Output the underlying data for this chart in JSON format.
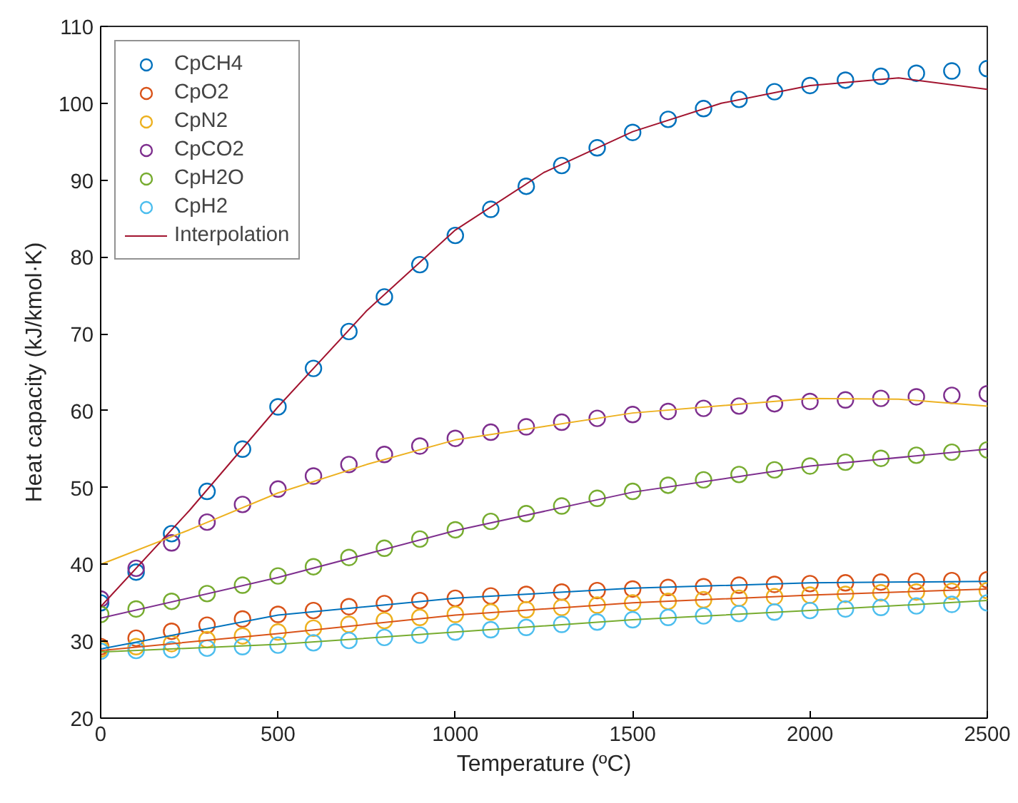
{
  "chart_data": {
    "type": "scatter",
    "xlabel": "Temperature (ºC)",
    "ylabel": "Heat capacity (kJ/kmol·K)",
    "xlim": [
      0,
      2500
    ],
    "ylim": [
      20,
      110
    ],
    "xticks": [
      0,
      500,
      1000,
      1500,
      2000,
      2500
    ],
    "yticks": [
      20,
      30,
      40,
      50,
      60,
      70,
      80,
      90,
      100,
      110
    ],
    "grid": false,
    "legend": "top left",
    "marker": "circle",
    "x": [
      0,
      100,
      200,
      300,
      400,
      500,
      600,
      700,
      800,
      900,
      1000,
      1100,
      1200,
      1300,
      1400,
      1500,
      1600,
      1700,
      1800,
      1900,
      2000,
      2100,
      2200,
      2300,
      2400,
      2500
    ],
    "series": [
      {
        "name": "CpCH4",
        "color": "#0072bd",
        "values": [
          35.0,
          39.0,
          44.0,
          49.5,
          55.0,
          60.5,
          65.5,
          70.3,
          74.8,
          79.0,
          82.8,
          86.2,
          89.2,
          91.9,
          94.2,
          96.2,
          97.9,
          99.3,
          100.5,
          101.5,
          102.3,
          103.0,
          103.5,
          103.9,
          104.2,
          104.5
        ]
      },
      {
        "name": "CpO2",
        "color": "#d95319",
        "values": [
          29.3,
          30.4,
          31.3,
          32.1,
          32.9,
          33.5,
          34.0,
          34.5,
          34.9,
          35.3,
          35.6,
          35.9,
          36.1,
          36.4,
          36.6,
          36.8,
          37.0,
          37.1,
          37.3,
          37.4,
          37.5,
          37.6,
          37.7,
          37.8,
          37.9,
          38.0
        ]
      },
      {
        "name": "CpN2",
        "color": "#edb120",
        "values": [
          29.0,
          29.3,
          29.7,
          30.2,
          30.7,
          31.2,
          31.7,
          32.2,
          32.7,
          33.1,
          33.5,
          33.8,
          34.1,
          34.4,
          34.7,
          35.0,
          35.2,
          35.4,
          35.6,
          35.8,
          36.0,
          36.1,
          36.3,
          36.4,
          36.5,
          36.6
        ]
      },
      {
        "name": "CpCO2",
        "color": "#7e2f8e",
        "values": [
          35.5,
          39.5,
          42.8,
          45.5,
          47.8,
          49.8,
          51.5,
          53.0,
          54.3,
          55.4,
          56.4,
          57.2,
          57.9,
          58.5,
          59.0,
          59.5,
          59.9,
          60.3,
          60.6,
          60.9,
          61.2,
          61.4,
          61.6,
          61.8,
          62.0,
          62.2
        ]
      },
      {
        "name": "CpH2O",
        "color": "#77ac30",
        "values": [
          33.5,
          34.2,
          35.2,
          36.2,
          37.3,
          38.5,
          39.7,
          40.9,
          42.1,
          43.3,
          44.5,
          45.6,
          46.6,
          47.6,
          48.6,
          49.5,
          50.3,
          51.0,
          51.7,
          52.3,
          52.8,
          53.3,
          53.8,
          54.2,
          54.6,
          54.9
        ]
      },
      {
        "name": "CpH2",
        "color": "#4dbeee",
        "values": [
          28.7,
          28.8,
          28.9,
          29.1,
          29.3,
          29.5,
          29.8,
          30.1,
          30.5,
          30.8,
          31.2,
          31.5,
          31.8,
          32.2,
          32.5,
          32.8,
          33.1,
          33.3,
          33.6,
          33.8,
          34.0,
          34.2,
          34.4,
          34.6,
          34.8,
          35.0
        ]
      },
      {
        "name": "Interpolation",
        "type": "line",
        "marker": "none",
        "color": "#a2142f",
        "x": [
          0,
          250,
          500,
          750,
          1000,
          1250,
          1500,
          1750,
          2000,
          2250,
          2500
        ],
        "values": [
          34.5,
          47.0,
          60.5,
          73.0,
          83.5,
          91.0,
          96.3,
          100.0,
          102.3,
          103.3,
          101.8
        ]
      },
      {
        "type": "line",
        "marker": "none",
        "color": "#0072bd",
        "x": [
          0,
          500,
          1000,
          1500,
          2000,
          2500
        ],
        "values": [
          29.0,
          33.4,
          35.6,
          36.9,
          37.6,
          37.8
        ]
      },
      {
        "type": "line",
        "marker": "none",
        "color": "#d95319",
        "x": [
          0,
          500,
          1000,
          1500,
          2000,
          2500
        ],
        "values": [
          28.8,
          31.0,
          33.4,
          35.0,
          36.0,
          36.8
        ]
      },
      {
        "type": "line",
        "marker": "none",
        "color": "#edb120",
        "x": [
          0,
          250,
          500,
          750,
          1000,
          1500,
          2000,
          2250,
          2500
        ],
        "values": [
          40.0,
          44.5,
          49.3,
          53.0,
          56.2,
          59.7,
          61.6,
          61.5,
          60.6
        ]
      },
      {
        "type": "line",
        "marker": "none",
        "color": "#7e2f8e",
        "x": [
          0,
          500,
          1000,
          1500,
          2000,
          2500
        ],
        "values": [
          33.0,
          38.3,
          44.4,
          49.4,
          52.8,
          55.0
        ]
      },
      {
        "type": "line",
        "marker": "none",
        "color": "#77ac30",
        "x": [
          0,
          500,
          1000,
          1500,
          2000,
          2500
        ],
        "values": [
          28.6,
          29.6,
          31.2,
          32.8,
          34.0,
          35.3
        ]
      }
    ]
  }
}
